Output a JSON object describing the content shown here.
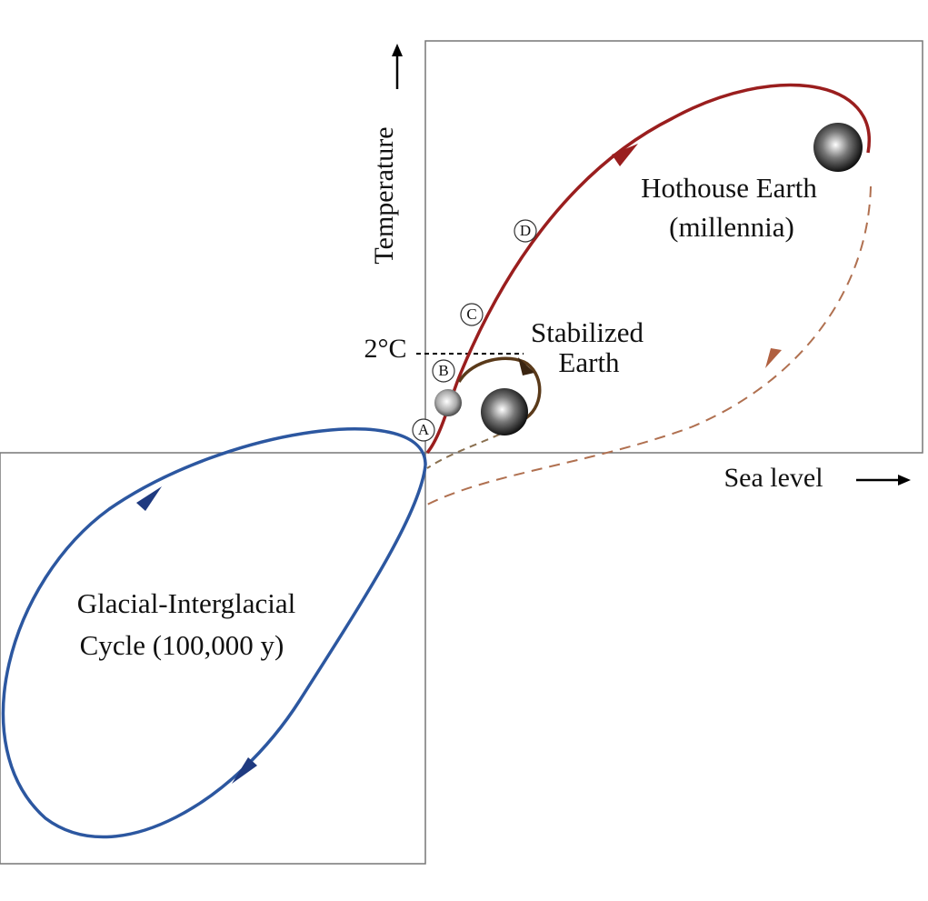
{
  "axes": {
    "y_label": "Temperature",
    "x_label": "Sea level",
    "threshold_label": "2°C"
  },
  "markers": [
    "A",
    "B",
    "C",
    "D"
  ],
  "regions": {
    "hothouse": [
      "Hothouse Earth",
      "(millennia)"
    ],
    "stabilized": [
      "Stabilized",
      "Earth"
    ],
    "glacial": [
      "Glacial-Interglacial",
      "Cycle (100,000 y)"
    ]
  }
}
